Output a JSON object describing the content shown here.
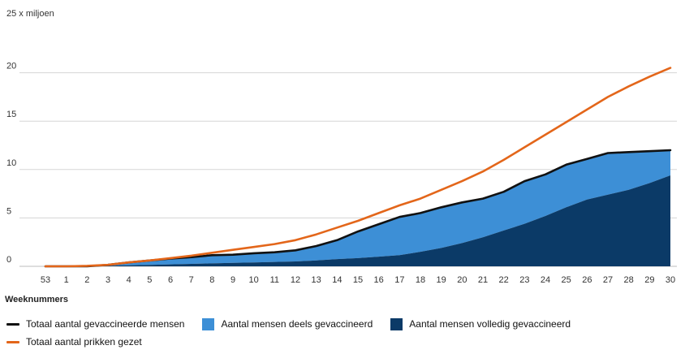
{
  "chart_data": {
    "type": "area",
    "unit_label": "25 x miljoen",
    "xlabel": "Weeknummers",
    "categories": [
      "53",
      "1",
      "2",
      "3",
      "4",
      "5",
      "6",
      "7",
      "8",
      "9",
      "10",
      "11",
      "12",
      "13",
      "14",
      "15",
      "16",
      "17",
      "18",
      "19",
      "20",
      "21",
      "22",
      "23",
      "24",
      "25",
      "26",
      "27",
      "28",
      "29",
      "30"
    ],
    "ylim": [
      0,
      25
    ],
    "yticks": [
      0,
      5,
      10,
      15,
      20
    ],
    "grid": true,
    "legend_position": "bottom-left",
    "series": [
      {
        "key": "full",
        "name": "Aantal mensen volledig gevaccineerd",
        "kind": "area",
        "color": "#0b3a67",
        "values": [
          0,
          0,
          0,
          0.05,
          0.1,
          0.15,
          0.2,
          0.25,
          0.3,
          0.35,
          0.4,
          0.45,
          0.5,
          0.6,
          0.75,
          0.85,
          1.0,
          1.15,
          1.5,
          1.9,
          2.4,
          3.0,
          3.7,
          4.4,
          5.2,
          6.1,
          6.9,
          7.4,
          7.9,
          8.6,
          9.4
        ]
      },
      {
        "key": "partial",
        "name": "Aantal mensen deels gevaccineerd",
        "kind": "area",
        "color": "#3d8fd6",
        "values": [
          0,
          0,
          0,
          0.1,
          0.3,
          0.45,
          0.6,
          0.7,
          0.85,
          0.85,
          0.95,
          1.0,
          1.15,
          1.5,
          1.95,
          2.75,
          3.35,
          3.95,
          4.0,
          4.2,
          4.2,
          4.0,
          4.0,
          4.4,
          4.3,
          4.4,
          4.2,
          4.3,
          3.9,
          3.3,
          2.6
        ]
      },
      {
        "key": "total_people",
        "name": "Totaal aantal gevaccineerde mensen",
        "kind": "line",
        "color": "#111111",
        "values": [
          0,
          0,
          0,
          0.15,
          0.4,
          0.6,
          0.8,
          0.95,
          1.15,
          1.2,
          1.35,
          1.45,
          1.65,
          2.1,
          2.7,
          3.6,
          4.35,
          5.1,
          5.5,
          6.1,
          6.6,
          7.0,
          7.7,
          8.8,
          9.5,
          10.5,
          11.1,
          11.7,
          11.8,
          11.9,
          12.0
        ]
      },
      {
        "key": "total_shots",
        "name": "Totaal aantal prikken gezet",
        "kind": "line",
        "color": "#e3661a",
        "values": [
          0,
          0,
          0.05,
          0.15,
          0.4,
          0.6,
          0.85,
          1.1,
          1.4,
          1.7,
          2.0,
          2.3,
          2.7,
          3.3,
          4.0,
          4.7,
          5.5,
          6.3,
          7.0,
          7.9,
          8.8,
          9.8,
          11.0,
          12.3,
          13.6,
          14.9,
          16.2,
          17.5,
          18.6,
          19.6,
          20.5
        ]
      }
    ]
  },
  "legend": {
    "row1": [
      {
        "label": "Totaal aantal gevaccineerde mensen",
        "style": "line",
        "color": "#111111"
      },
      {
        "label": "Aantal mensen deels gevaccineerd",
        "style": "box",
        "color": "#3d8fd6"
      },
      {
        "label": "Aantal mensen volledig gevaccineerd",
        "style": "box",
        "color": "#0b3a67"
      }
    ],
    "row2": [
      {
        "label": "Totaal aantal prikken gezet",
        "style": "line",
        "color": "#e3661a"
      }
    ]
  }
}
